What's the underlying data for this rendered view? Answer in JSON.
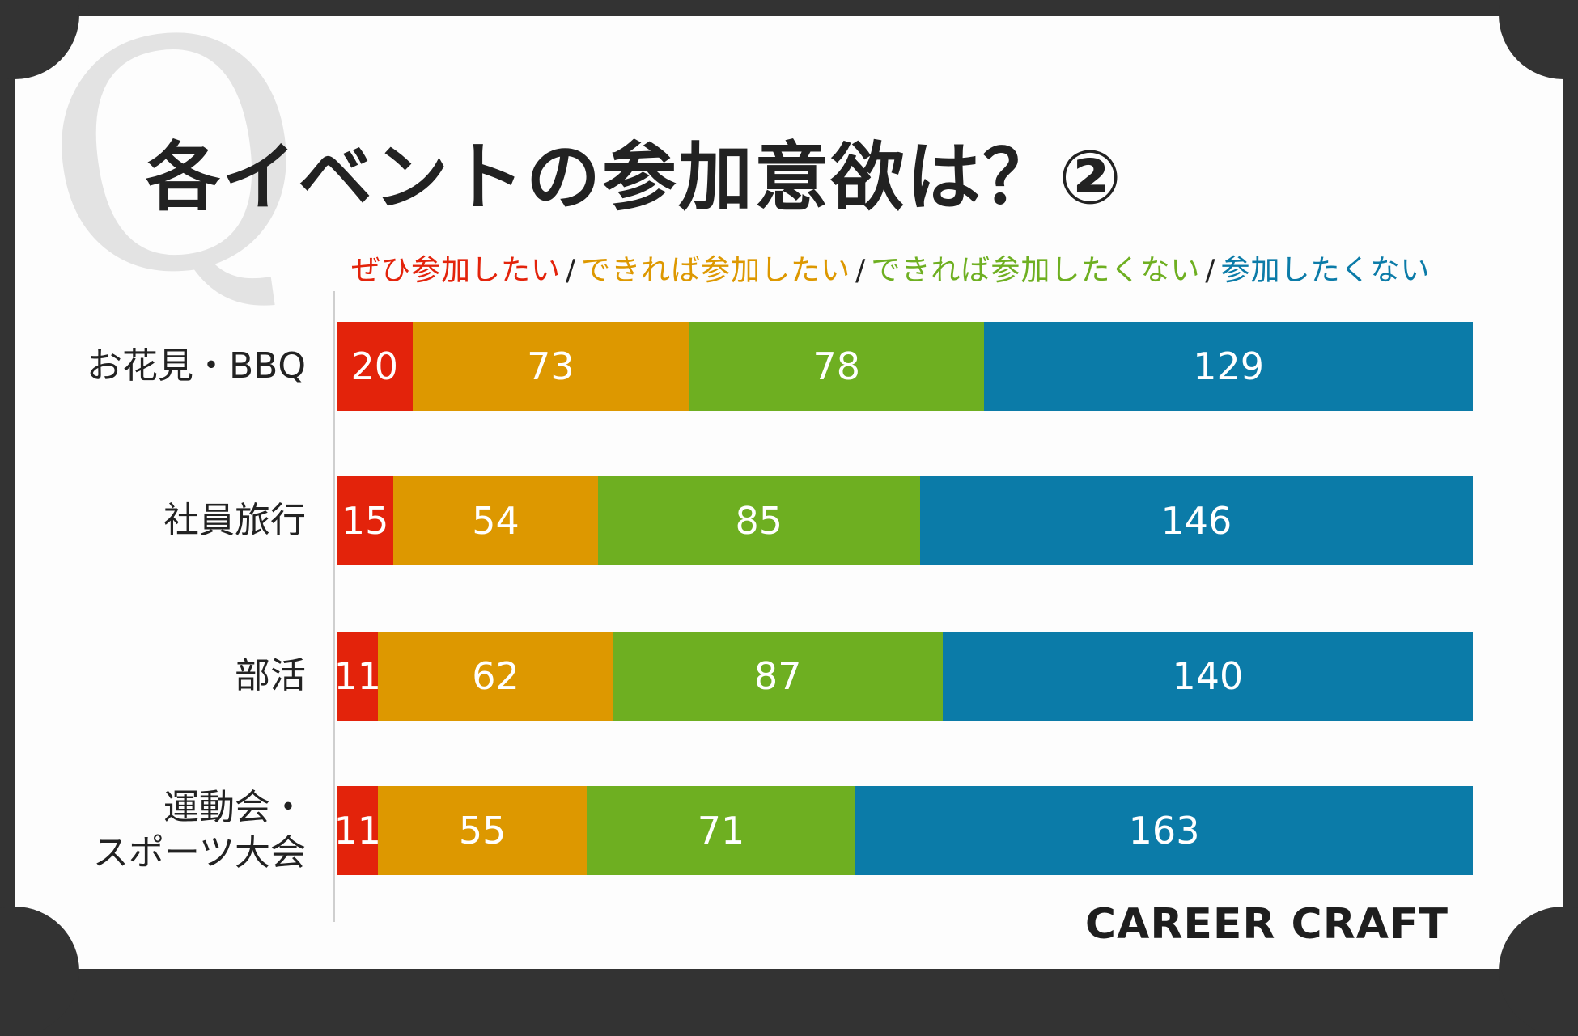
{
  "title": "各イベントの参加意欲は？②",
  "q_mark": "Q",
  "brand": "CAREER CRAFT",
  "colors": {
    "background": "#333333",
    "card": "#fdfdfd",
    "series": [
      "#e3230b",
      "#dd9800",
      "#6eaf21",
      "#0b7ba8"
    ]
  },
  "chart_data": {
    "type": "bar",
    "orientation": "horizontal",
    "stacked": true,
    "categories": [
      "お花見・BBQ",
      "社員旅行",
      "部活",
      "運動会・\nスポーツ大会"
    ],
    "series": [
      {
        "name": "ぜひ参加したい",
        "values": [
          20,
          15,
          11,
          11
        ]
      },
      {
        "name": "できれば参加したい",
        "values": [
          73,
          54,
          62,
          55
        ]
      },
      {
        "name": "できれば参加したくない",
        "values": [
          78,
          85,
          87,
          71
        ]
      },
      {
        "name": "参加したくない",
        "values": [
          129,
          146,
          140,
          163
        ]
      }
    ],
    "legend_position": "top",
    "data_labels": true,
    "grid": false
  }
}
